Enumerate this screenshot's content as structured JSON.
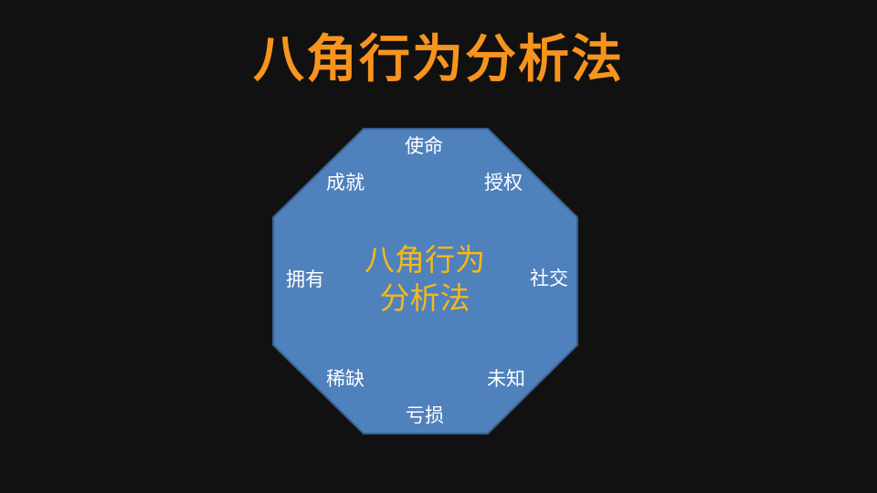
{
  "slide": {
    "title": "八角行为分析法",
    "title_color": "#f7941d"
  },
  "diagram": {
    "shape_fill": "#4f81bd",
    "shape_stroke": "#385d8a",
    "center_lines": [
      "八角行为",
      "分析法"
    ],
    "center_color": "#f5b81c",
    "label_color": "#ffffff",
    "labels": {
      "top": "使命",
      "top_right": "授权",
      "right": "社交",
      "bottom_right": "未知",
      "bottom": "亏损",
      "bottom_left": "稀缺",
      "left": "拥有",
      "top_left": "成就"
    }
  }
}
